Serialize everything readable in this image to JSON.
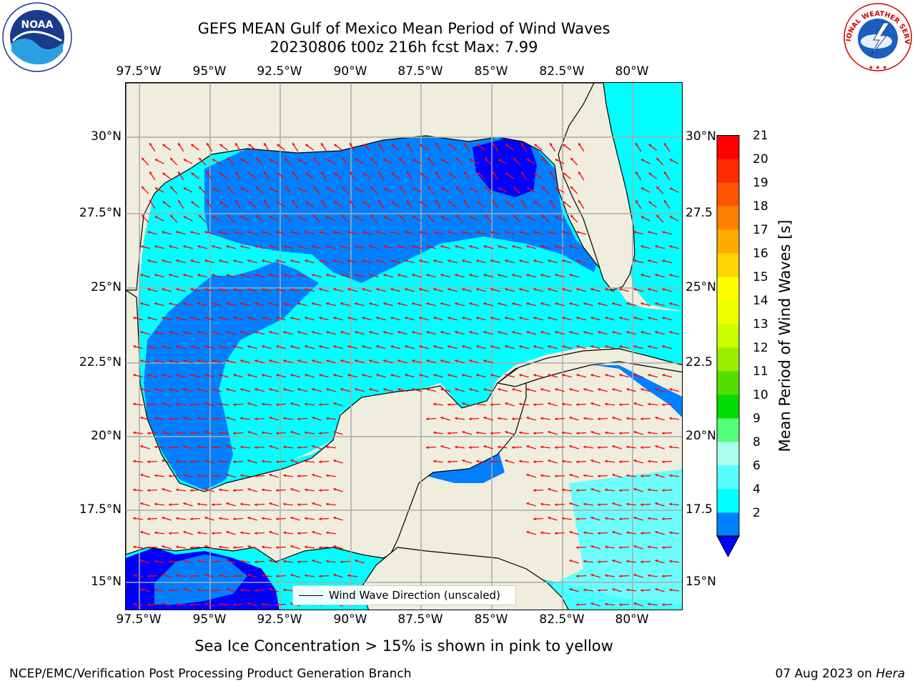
{
  "title_line1": "GEFS MEAN Gulf of Mexico Mean Period of Wind Waves",
  "title_line2": "20230806 t00z 216h fcst   Max: 7.99",
  "x_ticks": [
    "97.5°W",
    "95°W",
    "92.5°W",
    "90°W",
    "87.5°W",
    "85°W",
    "82.5°W",
    "80°W"
  ],
  "y_ticks": [
    "30°N",
    "27.5°N",
    "25°N",
    "22.5°N",
    "20°N",
    "17.5°N",
    "15°N"
  ],
  "y_ticks_right": [
    "30°N",
    "27.5",
    "25°N",
    "22.5",
    "20°N",
    "17.5",
    "15°N"
  ],
  "legend_label": "Wind Wave Direction (unscaled)",
  "colorbar": {
    "title": "Mean Period of Wind Waves [s]",
    "labels": [
      "21",
      "20",
      "19",
      "18",
      "17",
      "16",
      "15",
      "14",
      "13",
      "12",
      "11",
      "10",
      "9",
      "8",
      "6",
      "4",
      "2"
    ],
    "colors": [
      "#ff0000",
      "#ff2a00",
      "#ff5500",
      "#ff8000",
      "#ffaa00",
      "#ffd400",
      "#ffff00",
      "#eeff00",
      "#ccff00",
      "#99ee00",
      "#55dd00",
      "#00dd00",
      "#55ff77",
      "#aaffee",
      "#55ffff",
      "#00ffff",
      "#0080ff"
    ],
    "underflow_color": "#0000ff"
  },
  "colors": {
    "land": "#efedde",
    "band_2_4": "#0080ff",
    "band_4_6": "#00ffff",
    "band_6_8": "#55ffff",
    "below_2": "#0000ff",
    "arrow": "#ff0000",
    "grid": "#aaaaaa"
  },
  "subtitle": "Sea Ice Concentration > 15% is shown in pink to yellow",
  "footer_left": "NCEP/EMC/Verification Post Processing Product Generation Branch",
  "footer_date": "07 Aug 2023 on",
  "footer_host": "Hera",
  "logos": {
    "noaa_text": "NOAA",
    "nws_text": "NATIONAL WEATHER SERVICE"
  }
}
